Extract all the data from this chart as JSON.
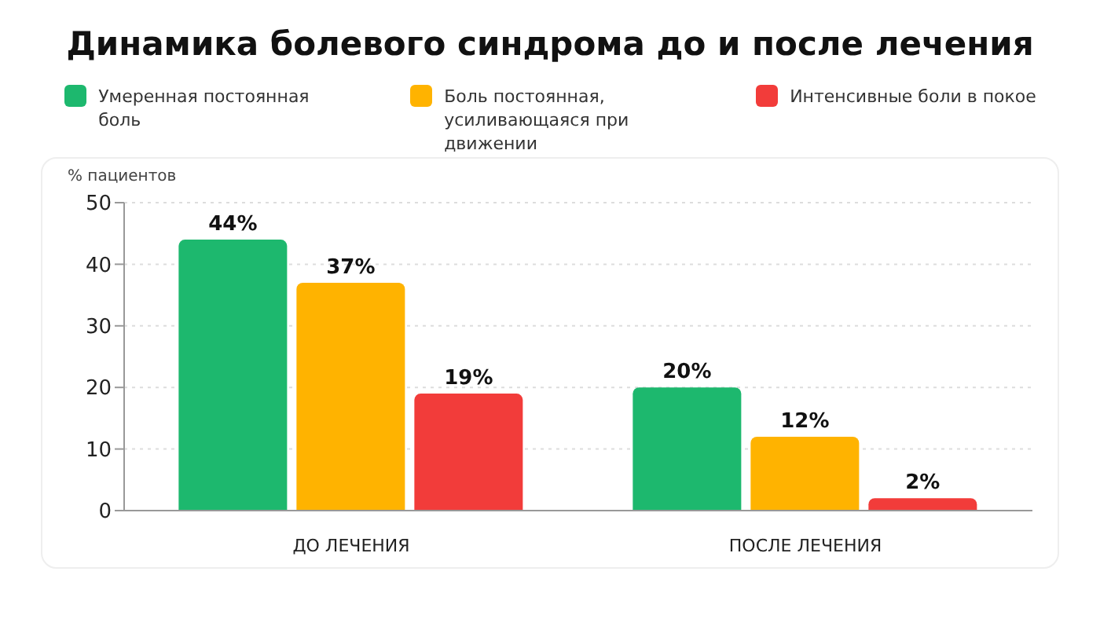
{
  "chart_data": {
    "type": "bar",
    "title": "Динамика болевого синдрома до и после лечения",
    "ylabel": "% пациентов",
    "categories": [
      "ДО ЛЕЧЕНИЯ",
      "ПОСЛЕ ЛЕЧЕНИЯ"
    ],
    "series": [
      {
        "name": "Умеренная постоянная боль",
        "color": "#1db86e",
        "values": [
          44,
          20
        ],
        "value_labels": [
          "44%",
          "20%"
        ]
      },
      {
        "name": "Боль постоянная, усиливающаяся при движении",
        "color": "#ffb300",
        "values": [
          37,
          12
        ],
        "value_labels": [
          "37%",
          "12%"
        ]
      },
      {
        "name": "Интенсивные боли в покое",
        "color": "#f23c3a",
        "values": [
          19,
          2
        ],
        "value_labels": [
          "19%",
          "2%"
        ]
      }
    ],
    "ylim": [
      0,
      50
    ],
    "yticks": [
      0,
      10,
      20,
      30,
      40,
      50
    ],
    "grid": "y",
    "legend": "top"
  }
}
